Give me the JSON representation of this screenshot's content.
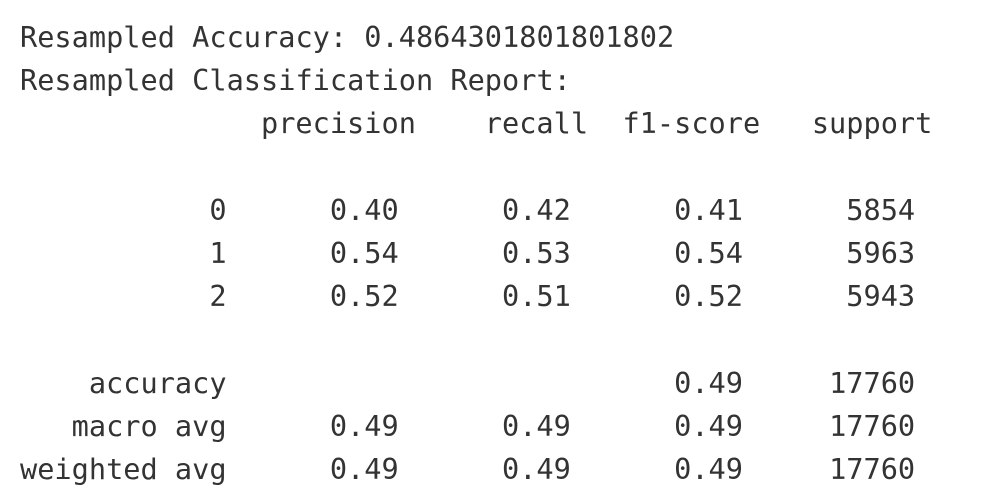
{
  "accuracy_line": {
    "label": "Resampled Accuracy:",
    "value": "0.4864301801801802"
  },
  "report_title": "Resampled Classification Report:",
  "headers": [
    "precision",
    "recall",
    "f1-score",
    "support"
  ],
  "rows": [
    {
      "label": "0",
      "precision": "0.40",
      "recall": "0.42",
      "f1": "0.41",
      "support": "5854"
    },
    {
      "label": "1",
      "precision": "0.54",
      "recall": "0.53",
      "f1": "0.54",
      "support": "5963"
    },
    {
      "label": "2",
      "precision": "0.52",
      "recall": "0.51",
      "f1": "0.52",
      "support": "5943"
    }
  ],
  "summary": [
    {
      "label": "accuracy",
      "precision": "",
      "recall": "",
      "f1": "0.49",
      "support": "17760"
    },
    {
      "label": "macro avg",
      "precision": "0.49",
      "recall": "0.49",
      "f1": "0.49",
      "support": "17760"
    },
    {
      "label": "weighted avg",
      "precision": "0.49",
      "recall": "0.49",
      "f1": "0.49",
      "support": "17760"
    }
  ]
}
